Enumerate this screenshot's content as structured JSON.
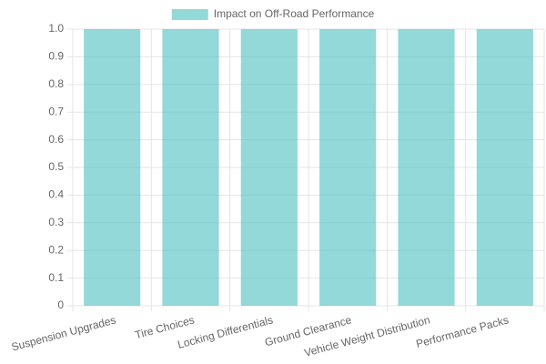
{
  "chart_data": {
    "type": "bar",
    "categories": [
      "Suspension Upgrades",
      "Tire Choices",
      "Locking Differentials",
      "Ground Clearance",
      "Vehicle Weight Distribution",
      "Performance Packs"
    ],
    "series": [
      {
        "name": "Impact on Off-Road Performance",
        "color": "rgba(75, 192, 192, 0.6)",
        "values": [
          1,
          1,
          1,
          1,
          1,
          1
        ]
      }
    ],
    "ylim": [
      0,
      1
    ],
    "yticks": [
      0,
      0.1,
      0.2,
      0.3,
      0.4,
      0.5,
      0.6,
      0.7,
      0.8,
      0.9,
      {
        "value": 1,
        "label": "1.0"
      }
    ],
    "grid": true,
    "legend": "top"
  }
}
